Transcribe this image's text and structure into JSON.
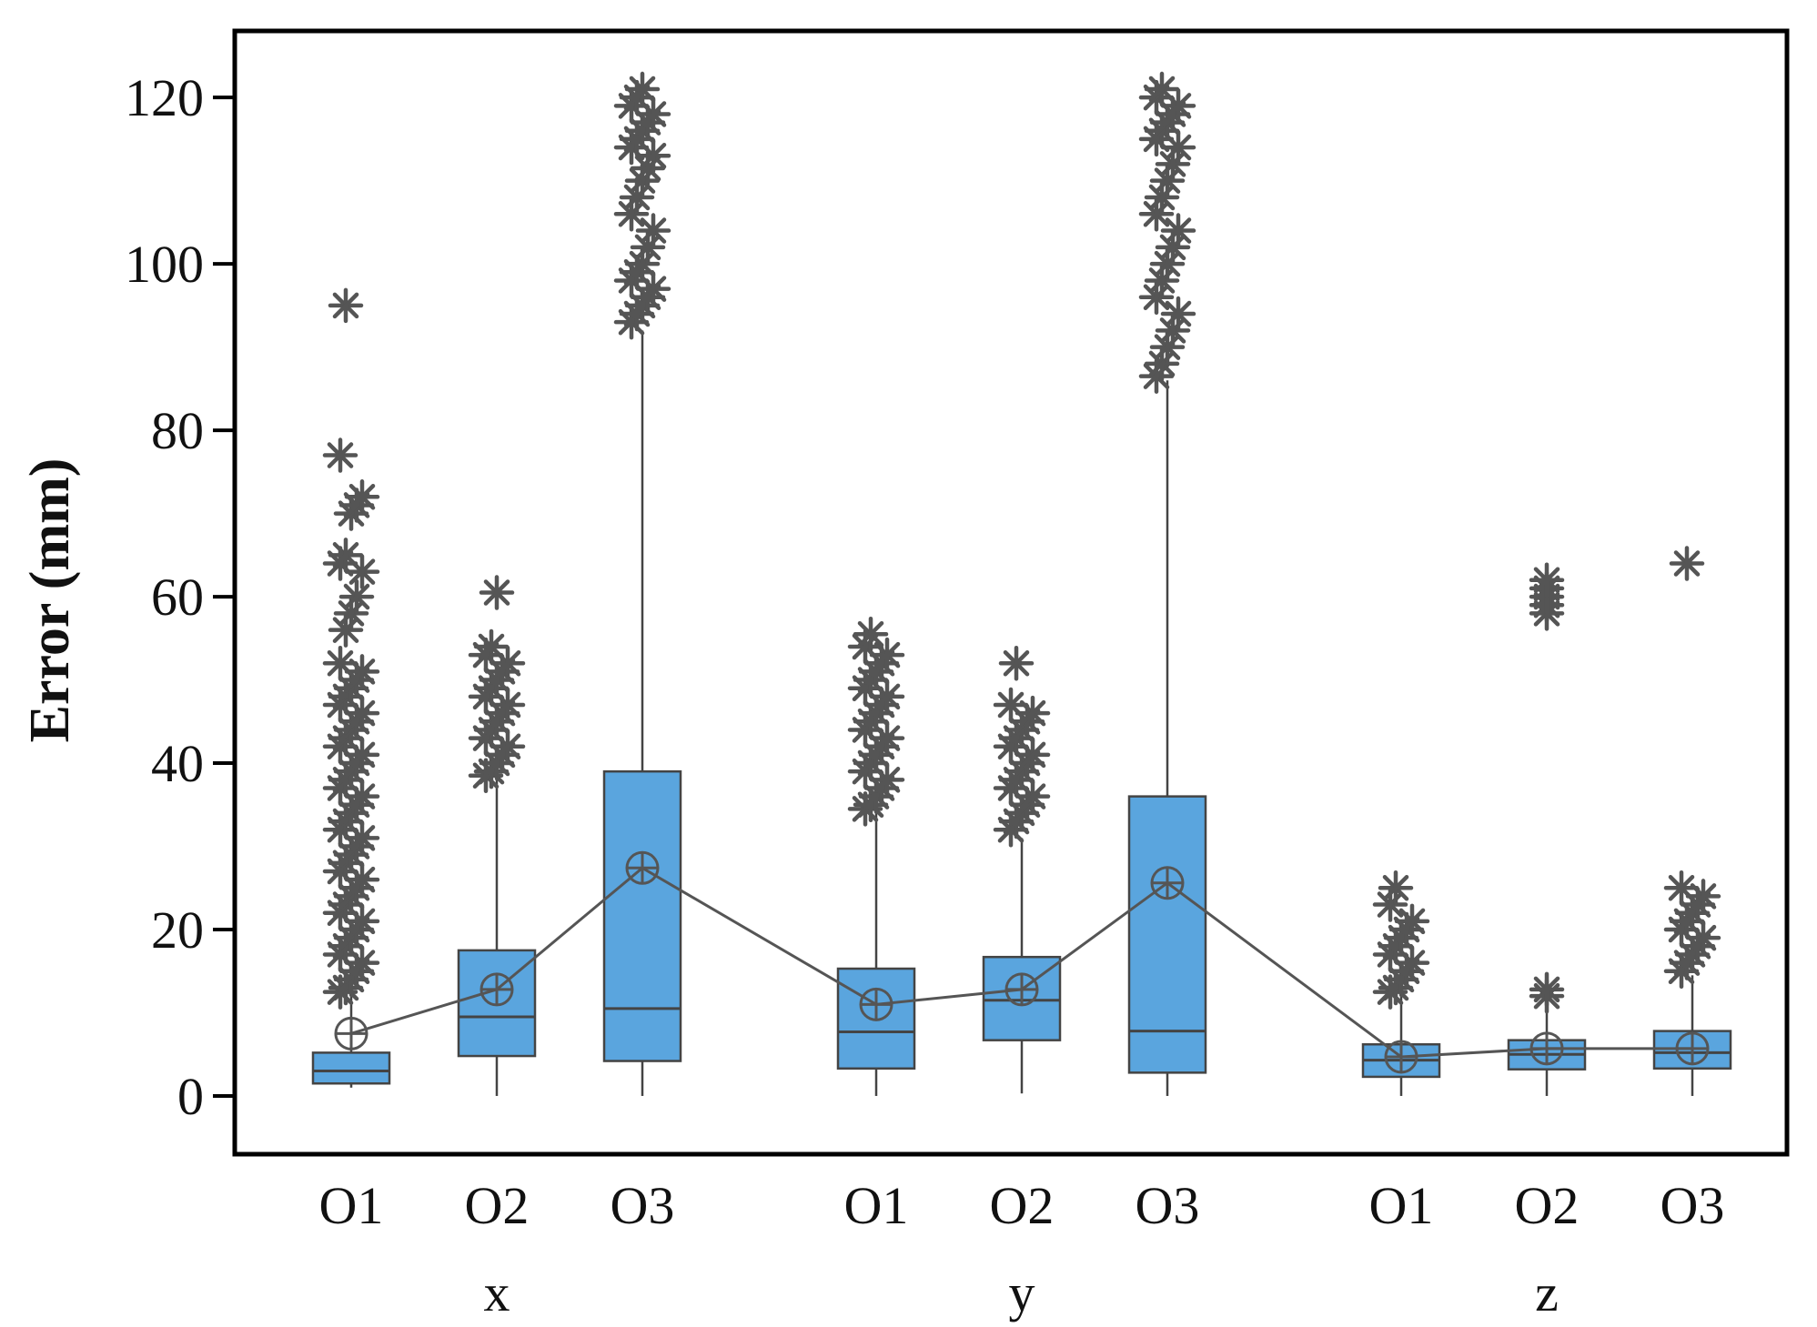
{
  "chart_data": {
    "type": "boxplot",
    "title": "",
    "xlabel": "",
    "ylabel": "Error (mm)",
    "ylim": [
      -7,
      128
    ],
    "yticks": [
      0,
      20,
      40,
      60,
      80,
      100,
      120
    ],
    "grid": false,
    "legend": "none",
    "colors": {
      "box_fill": "#5aa5de",
      "box_edge": "#444444",
      "line": "#555555",
      "outlier": "#555555",
      "frame": "#000000"
    },
    "groups": [
      {
        "name": "x",
        "boxes": [
          {
            "label": "O1",
            "min": 1,
            "q1": 1.5,
            "median": 3,
            "q3": 5.2,
            "max": 12,
            "mean": 7.5,
            "outliers": [
              12.5,
              13,
              14,
              15,
              16,
              17,
              18,
              19,
              20,
              21,
              22,
              23,
              24,
              25,
              26,
              27,
              28,
              29,
              30,
              31,
              32,
              33,
              34,
              35,
              36,
              37,
              38,
              39,
              40,
              41,
              42,
              43,
              44,
              45,
              46,
              47,
              48,
              49,
              50,
              51,
              52,
              56,
              58,
              60,
              63,
              64,
              65,
              70,
              71,
              72,
              77,
              95
            ]
          },
          {
            "label": "O2",
            "min": 0,
            "q1": 4.8,
            "median": 9.5,
            "q3": 17.5,
            "max": 38,
            "mean": 12.8,
            "outliers": [
              38.5,
              39,
              40,
              41,
              42,
              43,
              44,
              45,
              46,
              47,
              48,
              49,
              50,
              51,
              52,
              53,
              54,
              60.5
            ]
          },
          {
            "label": "O3",
            "min": 0,
            "q1": 4.2,
            "median": 10.5,
            "q3": 39,
            "max": 92,
            "mean": 27.4,
            "outliers": [
              93,
              94,
              95,
              96,
              97,
              98,
              99,
              100,
              102,
              104,
              106,
              108,
              110,
              111.5,
              113,
              114,
              115,
              116,
              117,
              118,
              119,
              120,
              121
            ]
          }
        ]
      },
      {
        "name": "y",
        "boxes": [
          {
            "label": "O1",
            "min": 0,
            "q1": 3.3,
            "median": 7.7,
            "q3": 15.3,
            "max": 34,
            "mean": 11,
            "outliers": [
              34.5,
              35,
              36,
              37,
              38,
              39,
              40,
              41,
              42,
              43,
              44,
              45,
              46,
              47,
              48,
              49,
              50,
              51,
              52,
              53,
              54,
              55.5
            ]
          },
          {
            "label": "O2",
            "min": 0.3,
            "q1": 6.7,
            "median": 11.5,
            "q3": 16.7,
            "max": 31,
            "mean": 12.8,
            "outliers": [
              32,
              33,
              34,
              35,
              36,
              37,
              38,
              39,
              40,
              41,
              42,
              43,
              44,
              45,
              46,
              47,
              52
            ]
          },
          {
            "label": "O3",
            "min": 0,
            "q1": 2.8,
            "median": 7.8,
            "q3": 36,
            "max": 86,
            "mean": 25.6,
            "outliers": [
              86.5,
              88,
              90,
              92,
              94,
              96,
              98,
              100,
              102,
              104,
              106,
              108,
              110,
              112,
              114,
              115,
              116,
              117,
              118,
              119,
              120,
              121
            ]
          }
        ]
      },
      {
        "name": "z",
        "boxes": [
          {
            "label": "O1",
            "min": 0,
            "q1": 2.3,
            "median": 4.3,
            "q3": 6.2,
            "max": 12,
            "mean": 4.7,
            "outliers": [
              12.5,
              13,
              14,
              15,
              16,
              17,
              18,
              19,
              20,
              21,
              23,
              25
            ]
          },
          {
            "label": "O2",
            "min": 0,
            "q1": 3.2,
            "median": 5,
            "q3": 6.7,
            "max": 11.5,
            "mean": 5.7,
            "outliers": [
              12,
              12.8,
              58,
              59,
              60,
              61,
              62
            ]
          },
          {
            "label": "O3",
            "min": 0,
            "q1": 3.3,
            "median": 5.2,
            "q3": 7.8,
            "max": 14.5,
            "mean": 5.7,
            "outliers": [
              15,
              16,
              17,
              18,
              19,
              20,
              21,
              22,
              23,
              24,
              25,
              64
            ]
          }
        ]
      }
    ]
  }
}
